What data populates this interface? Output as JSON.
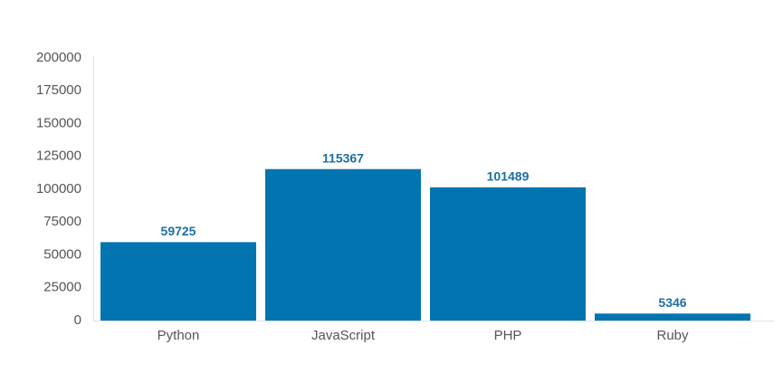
{
  "chart_data": {
    "type": "bar",
    "categories": [
      "Python",
      "JavaScript",
      "PHP",
      "Ruby"
    ],
    "values": [
      59725,
      115367,
      101489,
      5346
    ],
    "color": "#0275b1",
    "ylim": [
      0,
      200000
    ],
    "yticks": [
      0,
      25000,
      50000,
      75000,
      100000,
      125000,
      150000,
      175000,
      200000
    ],
    "grid": false
  }
}
